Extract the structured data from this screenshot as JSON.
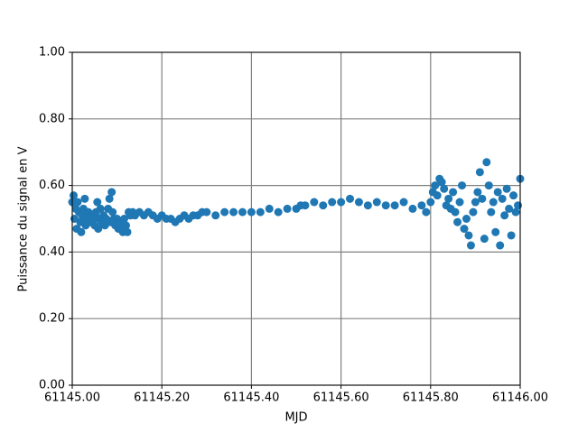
{
  "chart_data": {
    "type": "scatter",
    "xlabel": "MJD",
    "ylabel": "Puissance du signal en V",
    "color": "#1f77b4",
    "grid": true,
    "xlim": [
      61145.0,
      61146.0
    ],
    "xticks": [
      {
        "value": 61145.0,
        "label": "61145.00"
      },
      {
        "value": 61145.2,
        "label": "61145.20"
      },
      {
        "value": 61145.4,
        "label": "61145.40"
      },
      {
        "value": 61145.6,
        "label": "61145.60"
      },
      {
        "value": 61145.8,
        "label": "61145.80"
      },
      {
        "value": 61146.0,
        "label": "61146.00"
      }
    ],
    "ylim": [
      0,
      1
    ],
    "yticks": [
      {
        "value": 0,
        "label": "0.00"
      },
      {
        "value": 0.2,
        "label": "0.20"
      },
      {
        "value": 0.4,
        "label": "0.40"
      },
      {
        "value": 0.6,
        "label": "0.60"
      },
      {
        "value": 0.8,
        "label": "0.80"
      },
      {
        "value": 1,
        "label": "1.00"
      }
    ],
    "x": [
      61145.0,
      61145.003,
      61145.005,
      61145.008,
      61145.01,
      61145.012,
      61145.015,
      61145.018,
      61145.02,
      61145.022,
      61145.025,
      61145.028,
      61145.03,
      61145.033,
      61145.036,
      61145.04,
      61145.043,
      61145.047,
      61145.05,
      61145.053,
      61145.056,
      61145.058,
      61145.06,
      61145.063,
      61145.066,
      61145.07,
      61145.073,
      61145.076,
      61145.08,
      61145.083,
      61145.085,
      61145.088,
      61145.09,
      61145.093,
      61145.096,
      61145.1,
      61145.103,
      61145.106,
      61145.11,
      61145.113,
      61145.116,
      61145.12,
      61145.123,
      61145.126,
      61145.13,
      61145.135,
      61145.14,
      61145.15,
      61145.16,
      61145.17,
      61145.18,
      61145.19,
      61145.2,
      61145.21,
      61145.22,
      61145.23,
      61145.24,
      61145.25,
      61145.26,
      61145.27,
      61145.28,
      61145.29,
      61145.3,
      61145.32,
      61145.34,
      61145.36,
      61145.38,
      61145.4,
      61145.42,
      61145.44,
      61145.46,
      61145.48,
      61145.5,
      61145.51,
      61145.52,
      61145.54,
      61145.56,
      61145.58,
      61145.6,
      61145.62,
      61145.64,
      61145.66,
      61145.68,
      61145.7,
      61145.72,
      61145.74,
      61145.76,
      61145.78,
      61145.79,
      61145.8,
      61145.805,
      61145.81,
      61145.815,
      61145.82,
      61145.825,
      61145.83,
      61145.835,
      61145.84,
      61145.845,
      61145.85,
      61145.855,
      61145.86,
      61145.865,
      61145.87,
      61145.875,
      61145.88,
      61145.885,
      61145.89,
      61145.895,
      61145.9,
      61145.905,
      61145.91,
      61145.915,
      61145.92,
      61145.925,
      61145.93,
      61145.935,
      61145.94,
      61145.945,
      61145.95,
      61145.955,
      61145.96,
      61145.965,
      61145.97,
      61145.975,
      61145.98,
      61145.985,
      61145.99,
      61145.995,
      61146.0
    ],
    "values": [
      0.55,
      0.57,
      0.5,
      0.53,
      0.47,
      0.55,
      0.52,
      0.49,
      0.46,
      0.51,
      0.53,
      0.56,
      0.48,
      0.5,
      0.52,
      0.49,
      0.51,
      0.5,
      0.48,
      0.52,
      0.55,
      0.47,
      0.5,
      0.53,
      0.49,
      0.51,
      0.48,
      0.5,
      0.53,
      0.56,
      0.49,
      0.58,
      0.52,
      0.5,
      0.48,
      0.5,
      0.47,
      0.49,
      0.47,
      0.46,
      0.5,
      0.48,
      0.46,
      0.52,
      0.51,
      0.52,
      0.51,
      0.52,
      0.51,
      0.52,
      0.51,
      0.5,
      0.51,
      0.5,
      0.5,
      0.49,
      0.5,
      0.51,
      0.5,
      0.51,
      0.51,
      0.52,
      0.52,
      0.51,
      0.52,
      0.52,
      0.52,
      0.52,
      0.52,
      0.53,
      0.52,
      0.53,
      0.53,
      0.54,
      0.54,
      0.55,
      0.54,
      0.55,
      0.55,
      0.56,
      0.55,
      0.54,
      0.55,
      0.54,
      0.54,
      0.55,
      0.53,
      0.54,
      0.52,
      0.55,
      0.58,
      0.6,
      0.57,
      0.62,
      0.61,
      0.59,
      0.54,
      0.56,
      0.53,
      0.58,
      0.52,
      0.49,
      0.55,
      0.6,
      0.47,
      0.5,
      0.45,
      0.42,
      0.52,
      0.55,
      0.58,
      0.64,
      0.56,
      0.44,
      0.67,
      0.6,
      0.52,
      0.55,
      0.46,
      0.58,
      0.42,
      0.56,
      0.51,
      0.59,
      0.53,
      0.45,
      0.57,
      0.52,
      0.54,
      0.62
    ]
  }
}
